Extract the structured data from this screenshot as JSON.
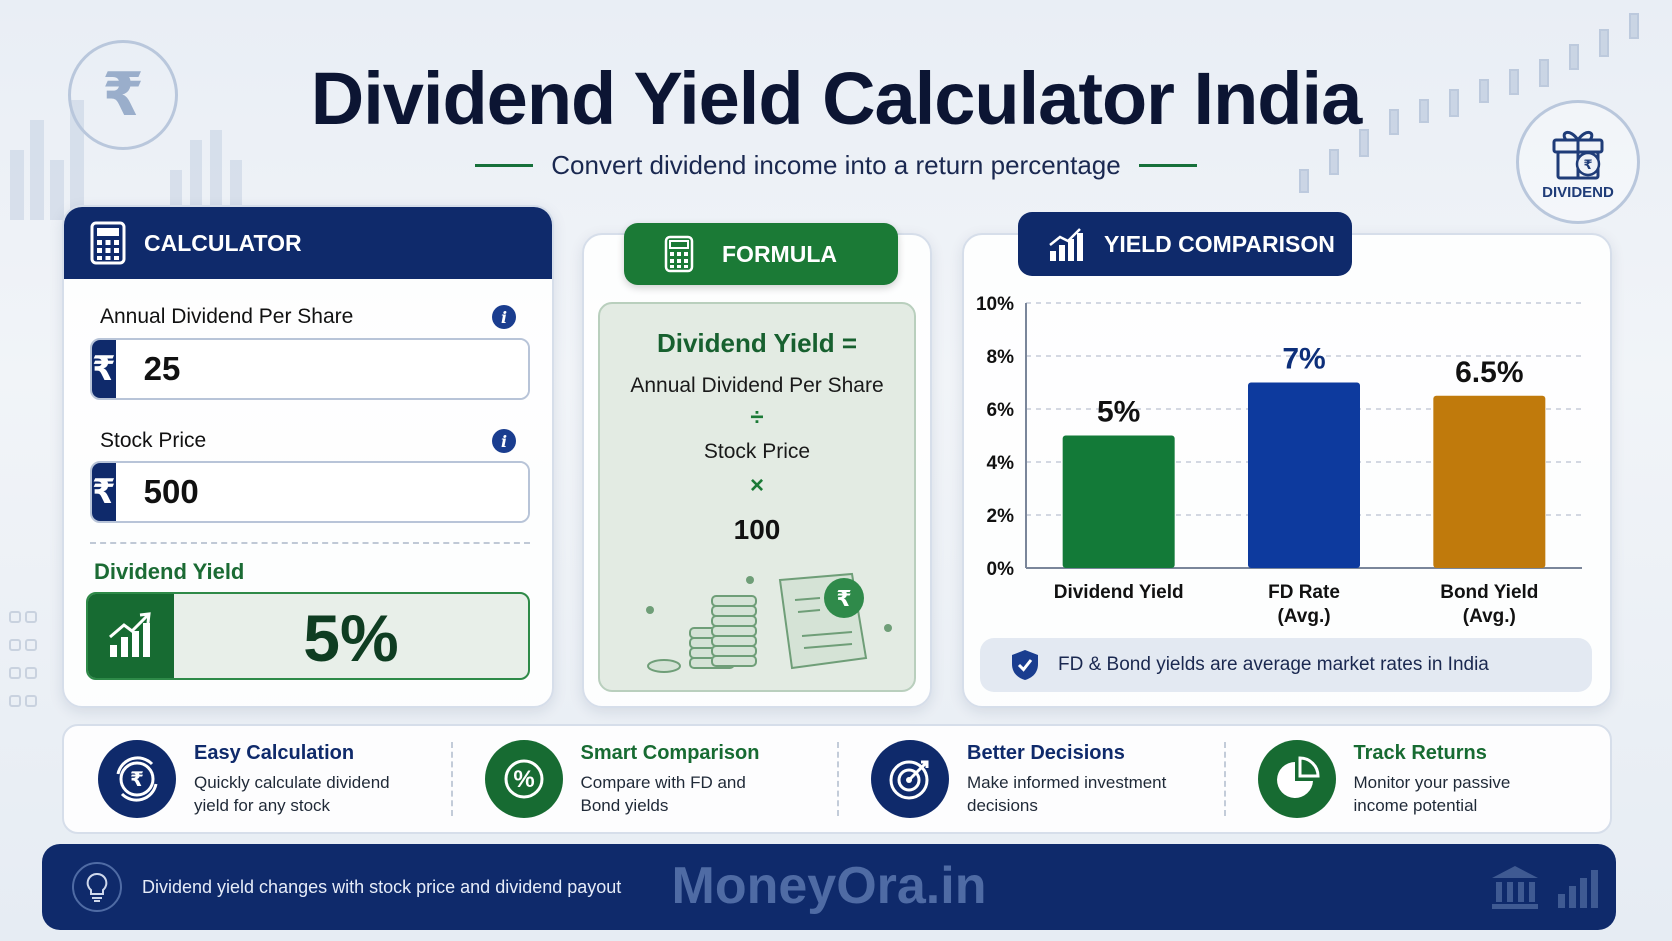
{
  "header": {
    "title": "Dividend Yield Calculator India",
    "subtitle": "Convert dividend income into a return percentage",
    "rupee_symbol": "₹",
    "badge_label": "DIVIDEND"
  },
  "calculator": {
    "heading": "CALCULATOR",
    "dividend_label": "Annual Dividend Per Share",
    "dividend_value": "25",
    "price_label": "Stock Price",
    "price_value": "500",
    "currency": "₹",
    "info": "i",
    "result_label": "Dividend Yield",
    "result_value": "5%"
  },
  "formula": {
    "heading": "FORMULA",
    "title": "Dividend Yield =",
    "numerator": "Annual Dividend Per Share",
    "divide_op": "÷",
    "denominator": "Stock Price",
    "multiply_op": "×",
    "multiplier": "100"
  },
  "comparison": {
    "heading": "YIELD COMPARISON",
    "note": "FD & Bond yields are average market rates in India"
  },
  "chart_data": {
    "type": "bar",
    "categories": [
      "Dividend Yield",
      "FD Rate (Avg.)",
      "Bond Yield (Avg.)"
    ],
    "category_lines": [
      [
        "Dividend Yield"
      ],
      [
        "FD Rate",
        "(Avg.)"
      ],
      [
        "Bond Yield",
        "(Avg.)"
      ]
    ],
    "values": [
      5,
      7,
      6.5
    ],
    "data_labels": [
      "5%",
      "7%",
      "6.5%"
    ],
    "bar_colors": [
      "#137a38",
      "#0d3a9e",
      "#c07a0c"
    ],
    "label_colors": [
      "#111111",
      "#0d2f7a",
      "#111111"
    ],
    "yticks": [
      "0%",
      "2%",
      "4%",
      "6%",
      "8%",
      "10%"
    ],
    "ylim": [
      0,
      10
    ],
    "grid": true
  },
  "features": [
    {
      "title": "Easy Calculation",
      "line1": "Quickly calculate dividend",
      "line2": "yield for any stock",
      "color": "#0f2a6b",
      "title_color": "#0f2a6b"
    },
    {
      "title": "Smart Comparison",
      "line1": "Compare with FD and",
      "line2": "Bond yields",
      "color": "#176b32",
      "title_color": "#176b32"
    },
    {
      "title": "Better Decisions",
      "line1": "Make informed investment",
      "line2": "decisions",
      "color": "#0f2a6b",
      "title_color": "#0f2a6b"
    },
    {
      "title": "Track Returns",
      "line1": "Monitor your passive",
      "line2": "income potential",
      "color": "#176b32",
      "title_color": "#176b32"
    }
  ],
  "footer": {
    "tip": "Dividend yield changes with stock price and dividend payout",
    "brand": "MoneyOra.in"
  }
}
